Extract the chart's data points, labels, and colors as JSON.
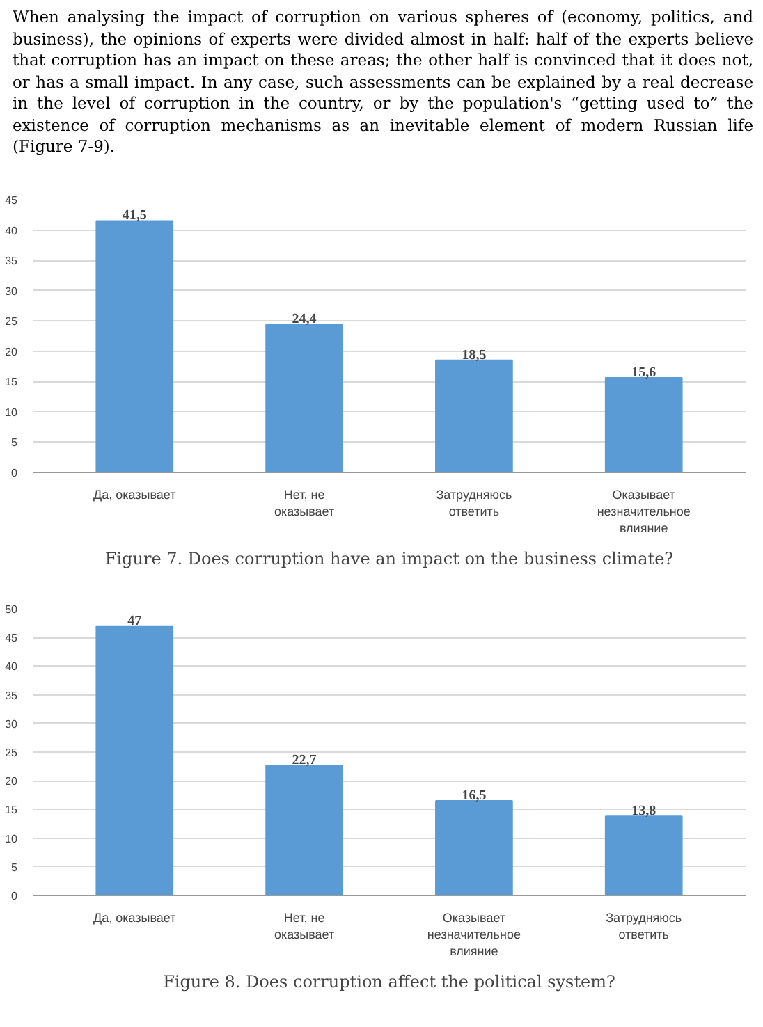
{
  "chart_data": [
    {
      "type": "bar",
      "title": "Figure 7. Does corruption have an impact on the business climate?",
      "annotations": [
        "When analysing the impact of corruption on various spheres of (economy, politics, and business), the opinions of experts were divided almost in half: half of the experts believe that corruption has an impact on these areas; the other half is convinced that it does not, or has a small impact. In any case, such assessments can be explained by a real decrease in the level of corruption in the country, or by the population's “getting used to” the existence of corruption mechanisms as an inevitable element of modern Russian life (Figure 7-9)."
      ],
      "categories": [
        "Да, оказывает",
        "Нет, не\nоказывает",
        "Затрудняюсь\nответить",
        "Оказывает\nнезначительное\nвлияние"
      ],
      "values": [
        41.5,
        24.4,
        18.5,
        15.6
      ],
      "value_labels": [
        "41,5",
        "24,4",
        "18,5",
        "15,6"
      ],
      "color": "#5b9bd5",
      "ylim": [
        0,
        45
      ],
      "yticks": [
        0,
        5,
        10,
        15,
        20,
        25,
        30,
        35,
        40,
        45
      ],
      "grid": "y"
    },
    {
      "type": "bar",
      "title": "Figure 8. Does corruption affect the political system?",
      "categories": [
        "Да, оказывает",
        "Нет, не\nоказывает",
        "Оказывает\nнезначительное\nвлияние",
        "Затрудняюсь\nответить"
      ],
      "values": [
        47,
        22.7,
        16.5,
        13.8
      ],
      "value_labels": [
        "47",
        "22,7",
        "16,5",
        "13,8"
      ],
      "color": "#5b9bd5",
      "ylim": [
        0,
        50
      ],
      "yticks": [
        0,
        5,
        10,
        15,
        20,
        25,
        30,
        35,
        40,
        45,
        50
      ],
      "grid": "y"
    }
  ]
}
